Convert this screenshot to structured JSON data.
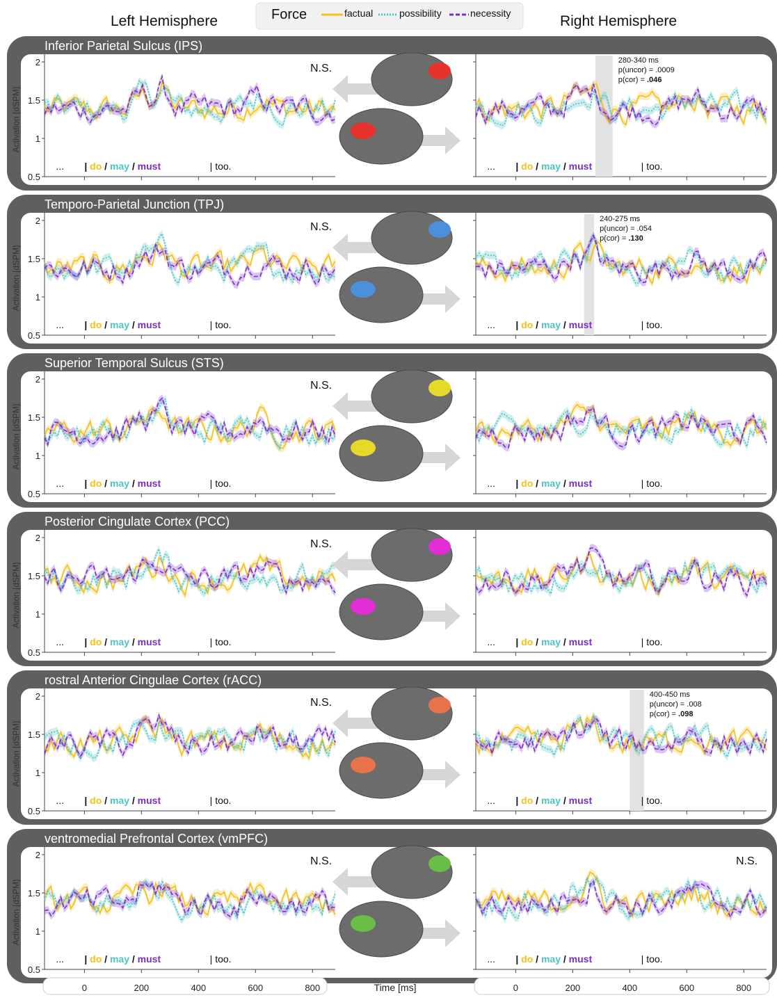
{
  "header": {
    "left_title": "Left Hemisphere",
    "right_title": "Right Hemisphere",
    "legend_title": "Force",
    "legend": [
      {
        "name": "factual",
        "color": "#F5C018",
        "dash": "solid"
      },
      {
        "name": "possibility",
        "color": "#4EC3C3",
        "dash": "dot"
      },
      {
        "name": "necessity",
        "color": "#7A2FC9",
        "dash": "dash"
      }
    ]
  },
  "colors": {
    "panel_frame": "#5f5f5f",
    "factual": "#F5C018",
    "possibility": "#4EC3C3",
    "necessity": "#7A2FC9",
    "significance_band": "#e2e2e2"
  },
  "x_axis": {
    "label": "Time [ms]",
    "ticks": [
      "0",
      "200",
      "400",
      "600",
      "800"
    ],
    "tick_values": [
      0,
      200,
      400,
      600,
      800
    ],
    "xlim": [
      -140,
      880
    ]
  },
  "y_axis": {
    "label": "Activation [dSPM]",
    "ticks": [
      "0.5",
      "1",
      "1.5",
      "2"
    ],
    "tick_values": [
      0.5,
      1,
      1.5,
      2
    ],
    "ylim": [
      0.5,
      2.1
    ]
  },
  "word_labels": {
    "ellipsis": "...",
    "do": "do",
    "sep1": "/",
    "may": "may",
    "sep2": "/",
    "must": "must",
    "too": "too."
  },
  "chart_data": [
    {
      "type": "line",
      "title": "Inferior Parietal Sulcus (IPS)",
      "left": {
        "ns": "N.S."
      },
      "right": {
        "ns": "",
        "window": [
          280,
          340
        ],
        "stat_window": "280-340 ms",
        "stat_p_uncor": "p(uncor) = .0009",
        "stat_p_cor_prefix": "p(cor) = ",
        "stat_p_cor_value": ".046"
      },
      "brain_color": "#E8322E",
      "series": [
        {
          "name": "factual",
          "mean_level": 1.38
        },
        {
          "name": "possibility",
          "mean_level": 1.38
        },
        {
          "name": "necessity",
          "mean_level": 1.38
        }
      ]
    },
    {
      "type": "line",
      "title": "Temporo-Parietal Junction (TPJ)",
      "left": {
        "ns": "N.S."
      },
      "right": {
        "ns": "",
        "window": [
          240,
          275
        ],
        "stat_window": "240-275 ms",
        "stat_p_uncor": "p(uncor) = .054",
        "stat_p_cor_prefix": "p(cor) = ",
        "stat_p_cor_value": ".130"
      },
      "brain_color": "#4C8FDB",
      "series": [
        {
          "name": "factual",
          "mean_level": 1.37
        },
        {
          "name": "possibility",
          "mean_level": 1.37
        },
        {
          "name": "necessity",
          "mean_level": 1.37
        }
      ]
    },
    {
      "type": "line",
      "title": "Superior Temporal Sulcus (STS)",
      "left": {
        "ns": "N.S."
      },
      "right": {
        "ns": ""
      },
      "brain_color": "#E6D92A",
      "series": [
        {
          "name": "factual",
          "mean_level": 1.32
        },
        {
          "name": "possibility",
          "mean_level": 1.32
        },
        {
          "name": "necessity",
          "mean_level": 1.32
        }
      ]
    },
    {
      "type": "line",
      "title": "Posterior Cingulate Cortex (PCC)",
      "left": {
        "ns": "N.S."
      },
      "right": {
        "ns": ""
      },
      "brain_color": "#E32DD7",
      "series": [
        {
          "name": "factual",
          "mean_level": 1.45
        },
        {
          "name": "possibility",
          "mean_level": 1.45
        },
        {
          "name": "necessity",
          "mean_level": 1.45
        }
      ]
    },
    {
      "type": "line",
      "title": "rostral Anterior Cingulae Cortex (rACC)",
      "left": {
        "ns": "N.S."
      },
      "right": {
        "ns": "",
        "window": [
          400,
          450
        ],
        "stat_window": "400-450 ms",
        "stat_p_uncor": "p(uncor) = .008",
        "stat_p_cor_prefix": "p(cor) = ",
        "stat_p_cor_value": ".098"
      },
      "brain_color": "#E8734A",
      "series": [
        {
          "name": "factual",
          "mean_level": 1.38
        },
        {
          "name": "possibility",
          "mean_level": 1.38
        },
        {
          "name": "necessity",
          "mean_level": 1.38
        }
      ]
    },
    {
      "type": "line",
      "title": "ventromedial Prefrontal Cortex (vmPFC)",
      "left": {
        "ns": "N.S."
      },
      "right": {
        "ns": "N.S."
      },
      "brain_color": "#6BBE45",
      "series": [
        {
          "name": "factual",
          "mean_level": 1.36
        },
        {
          "name": "possibility",
          "mean_level": 1.36
        },
        {
          "name": "necessity",
          "mean_level": 1.36
        }
      ]
    }
  ]
}
